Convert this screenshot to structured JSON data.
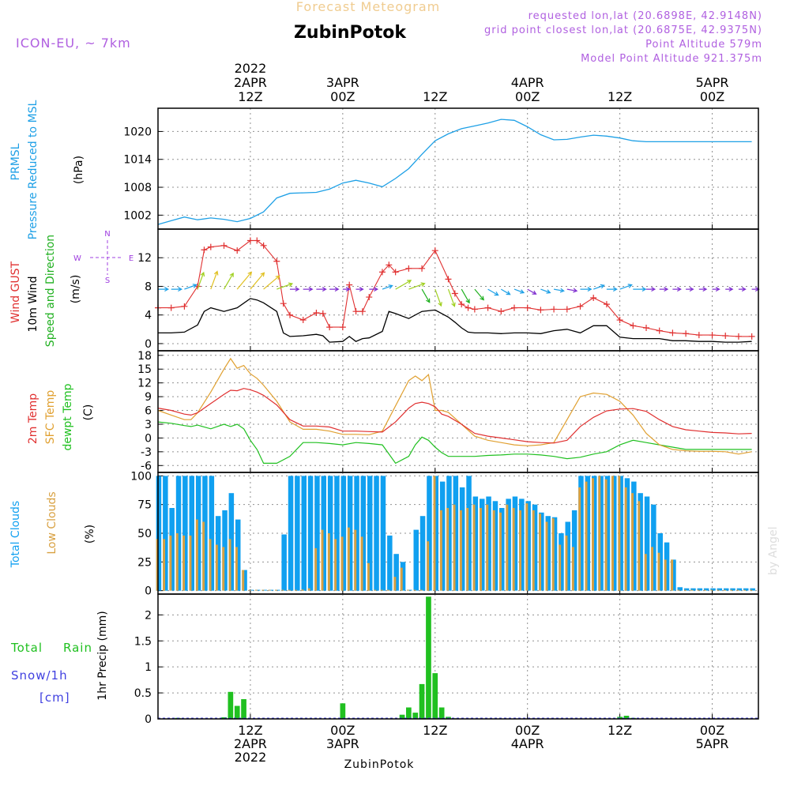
{
  "header": {
    "title": "ZubinPotok",
    "subtitle": "Forecast Meteogram",
    "model": "ICON-EU, ~ 7km",
    "requested": "requested lon,lat (20.6898E, 42.9148N)",
    "closest": "grid point closest lon,lat (20.6875E, 42.9375N)",
    "point_alt": "Point Altitude 579m",
    "model_alt": "Model Point Altitude 921.375m",
    "footer_name": "ZubinPotok",
    "watermark": "by Angel"
  },
  "time_axis": {
    "start_hour": 0,
    "end_hour": 91,
    "top_ticks": [
      {
        "hour": 14,
        "lines": [
          "2022",
          "2APR",
          "12Z"
        ]
      },
      {
        "hour": 28,
        "lines": [
          "3APR",
          "00Z"
        ]
      },
      {
        "hour": 42,
        "lines": [
          "12Z"
        ]
      },
      {
        "hour": 56,
        "lines": [
          "4APR",
          "00Z"
        ]
      },
      {
        "hour": 70,
        "lines": [
          "12Z"
        ]
      },
      {
        "hour": 84,
        "lines": [
          "5APR",
          "00Z"
        ]
      }
    ],
    "bottom_ticks": [
      {
        "hour": 14,
        "lines": [
          "12Z",
          "2APR",
          "2022"
        ]
      },
      {
        "hour": 28,
        "lines": [
          "00Z",
          "3APR"
        ]
      },
      {
        "hour": 42,
        "lines": [
          "12Z"
        ]
      },
      {
        "hour": 56,
        "lines": [
          "00Z",
          "4APR"
        ]
      },
      {
        "hour": 70,
        "lines": [
          "12Z"
        ]
      },
      {
        "hour": 84,
        "lines": [
          "00Z",
          "5APR"
        ]
      }
    ]
  },
  "colors": {
    "pressure": "#1ea0e6",
    "gust": "#e03030",
    "wind": "#000000",
    "wind_dir": "#20b020",
    "temp2m": "#e03030",
    "sfc": "#e0a030",
    "dewpt": "#20c020",
    "total_clouds": "#10a0f0",
    "low_clouds": "#d8a040",
    "rain": "#20c020",
    "snow": "#4040e0",
    "compass": "#a040e0",
    "grid": "#909090"
  },
  "chart_data": [
    {
      "type": "line",
      "id": "pressure",
      "labels": [
        "PRMSL",
        "Pressure Reduced to MSL",
        "(hPa)"
      ],
      "yticks": [
        1002,
        1008,
        1014,
        1020
      ],
      "ylim": [
        999,
        1025
      ],
      "x": [
        0,
        2,
        4,
        6,
        8,
        10,
        12,
        14,
        16,
        18,
        20,
        22,
        24,
        26,
        28,
        30,
        32,
        34,
        36,
        38,
        40,
        42,
        44,
        46,
        48,
        50,
        52,
        54,
        56,
        58,
        60,
        62,
        64,
        66,
        68,
        70,
        72,
        74,
        76,
        78,
        80,
        82,
        84,
        86,
        88,
        90
      ],
      "values": [
        1000.0,
        1000.8,
        1001.6,
        1001.0,
        1001.4,
        1001.1,
        1000.6,
        1001.3,
        1002.7,
        1005.7,
        1006.7,
        1006.8,
        1006.9,
        1007.6,
        1008.9,
        1009.5,
        1008.9,
        1008.1,
        1009.9,
        1012.0,
        1015.1,
        1018.0,
        1019.5,
        1020.6,
        1021.2,
        1021.8,
        1022.6,
        1022.4,
        1021.0,
        1019.3,
        1018.2,
        1018.3,
        1018.8,
        1019.2,
        1019.0,
        1018.6,
        1018.0,
        1017.8,
        1017.8,
        1017.8,
        1017.8,
        1017.8,
        1017.8,
        1017.8,
        1017.8,
        1017.8
      ]
    },
    {
      "type": "line",
      "id": "wind",
      "labels": [
        "Wind GUST",
        "10m Wind",
        "Speed and Direction",
        "(m/s)"
      ],
      "compass": [
        "N",
        "W",
        "E",
        "S"
      ],
      "yticks": [
        0,
        4,
        8,
        12
      ],
      "ylim": [
        -1,
        16
      ],
      "x": [
        0,
        2,
        4,
        6,
        7,
        8,
        10,
        12,
        14,
        15,
        16,
        18,
        19,
        20,
        22,
        24,
        25,
        26,
        28,
        29,
        30,
        31,
        32,
        34,
        35,
        36,
        38,
        40,
        42,
        44,
        45,
        46,
        47,
        48,
        50,
        52,
        54,
        56,
        58,
        60,
        62,
        64,
        66,
        68,
        70,
        72,
        74,
        76,
        78,
        80,
        82,
        84,
        86,
        88,
        90
      ],
      "series": [
        {
          "name": "Wind GUST",
          "values": [
            5.0,
            5.0,
            5.2,
            8.0,
            13.1,
            13.5,
            13.7,
            13.0,
            14.4,
            14.4,
            13.7,
            11.5,
            5.6,
            4.0,
            3.3,
            4.3,
            4.2,
            2.3,
            2.3,
            8.2,
            4.5,
            4.5,
            6.5,
            10.0,
            11.0,
            10.0,
            10.5,
            10.5,
            13.0,
            9.0,
            7.0,
            5.5,
            5.0,
            4.8,
            5.0,
            4.5,
            5.0,
            5.0,
            4.7,
            4.8,
            4.8,
            5.2,
            6.4,
            5.5,
            3.3,
            2.5,
            2.2,
            1.8,
            1.5,
            1.4,
            1.2,
            1.2,
            1.1,
            1.0,
            1.0
          ]
        },
        {
          "name": "10m Wind",
          "values": [
            1.5,
            1.5,
            1.6,
            2.6,
            4.5,
            5.0,
            4.5,
            5.0,
            6.3,
            6.1,
            5.7,
            4.5,
            1.5,
            1.0,
            1.1,
            1.3,
            1.1,
            0.2,
            0.3,
            1.0,
            0.3,
            0.7,
            0.8,
            1.7,
            4.5,
            4.2,
            3.5,
            4.5,
            4.7,
            3.7,
            3.0,
            2.2,
            1.6,
            1.5,
            1.5,
            1.4,
            1.5,
            1.5,
            1.4,
            1.8,
            2.0,
            1.5,
            2.5,
            2.5,
            0.9,
            0.7,
            0.7,
            0.7,
            0.4,
            0.4,
            0.3,
            0.3,
            0.2,
            0.2,
            0.3
          ]
        }
      ],
      "arrows": {
        "x": [
          0,
          2,
          4,
          6,
          8,
          10,
          12,
          14,
          16,
          18,
          20,
          22,
          24,
          26,
          28,
          30,
          32,
          34,
          36,
          38,
          40,
          42,
          44,
          46,
          48,
          50,
          52,
          54,
          56,
          58,
          60,
          62,
          64,
          66,
          68,
          70,
          72,
          74,
          76,
          78,
          80,
          82,
          84,
          86,
          88,
          90
        ],
        "speed": [
          1.5,
          1.6,
          2.6,
          4.5,
          5.0,
          4.8,
          6.3,
          6.0,
          5.7,
          4.0,
          1.0,
          1.1,
          1.3,
          1.0,
          0.2,
          0.3,
          0.8,
          1.7,
          4.5,
          4.2,
          3.5,
          4.5,
          4.7,
          3.7,
          3.0,
          2.2,
          1.6,
          1.5,
          1.4,
          1.5,
          1.5,
          1.4,
          1.8,
          2.0,
          1.5,
          2.5,
          2.5,
          0.9,
          0.7,
          0.7,
          0.4,
          0.4,
          0.3,
          0.3,
          0.2,
          0.3
        ],
        "direction_deg": [
          270,
          270,
          250,
          200,
          200,
          210,
          220,
          220,
          230,
          250,
          270,
          270,
          270,
          270,
          270,
          270,
          270,
          250,
          240,
          250,
          330,
          340,
          340,
          330,
          320,
          300,
          300,
          290,
          300,
          290,
          280,
          280,
          270,
          250,
          270,
          250,
          270,
          270,
          270,
          270,
          270,
          270,
          270,
          270,
          270,
          270
        ]
      }
    },
    {
      "type": "line",
      "id": "temperature",
      "labels": [
        "2m Temp",
        "SFC Temp",
        "dewpt Temp",
        "(C)"
      ],
      "yticks": [
        -6,
        -3,
        0,
        3,
        6,
        9,
        12,
        15,
        18
      ],
      "ylim": [
        -7.5,
        19
      ],
      "x": [
        0,
        2,
        4,
        5,
        6,
        8,
        10,
        11,
        12,
        13,
        14,
        15,
        16,
        18,
        20,
        22,
        24,
        26,
        28,
        30,
        32,
        34,
        36,
        38,
        39,
        40,
        41,
        42,
        43,
        44,
        46,
        48,
        50,
        52,
        54,
        56,
        58,
        60,
        62,
        64,
        66,
        68,
        70,
        72,
        74,
        76,
        78,
        80,
        82,
        84,
        86,
        88,
        90
      ],
      "series": [
        {
          "name": "2m Temp",
          "values": [
            6.5,
            6.0,
            5.2,
            5.0,
            5.5,
            7.5,
            9.5,
            10.4,
            10.3,
            10.8,
            10.5,
            10.0,
            9.3,
            7.2,
            4.0,
            2.6,
            2.6,
            2.4,
            1.5,
            1.5,
            1.4,
            1.3,
            3.5,
            6.5,
            7.5,
            7.8,
            7.5,
            6.8,
            5.2,
            4.7,
            3.0,
            1.0,
            0.4,
            0.0,
            -0.4,
            -0.8,
            -1.0,
            -1.1,
            -0.5,
            2.5,
            4.5,
            5.9,
            6.3,
            6.4,
            5.8,
            4.0,
            2.5,
            1.8,
            1.5,
            1.2,
            1.1,
            0.9,
            1.0
          ]
        },
        {
          "name": "SFC Temp",
          "values": [
            6.0,
            5.0,
            4.0,
            4.0,
            5.5,
            10.0,
            15.0,
            17.3,
            15.2,
            15.8,
            14.0,
            13.0,
            11.5,
            8.0,
            3.5,
            1.9,
            1.9,
            1.5,
            0.8,
            0.8,
            0.7,
            1.5,
            7.0,
            12.5,
            13.5,
            12.5,
            13.8,
            6.0,
            6.0,
            5.6,
            3.0,
            0.4,
            -0.5,
            -1.0,
            -1.5,
            -1.7,
            -1.5,
            -1.0,
            4.0,
            9.0,
            9.8,
            9.5,
            8.0,
            5.0,
            1.0,
            -1.5,
            -2.5,
            -2.8,
            -2.9,
            -2.9,
            -3.0,
            -3.5,
            -3.0
          ]
        },
        {
          "name": "dewpt Temp",
          "values": [
            3.5,
            3.2,
            2.7,
            2.5,
            2.8,
            2.0,
            3.0,
            2.5,
            3.0,
            2.0,
            -0.5,
            -2.5,
            -5.5,
            -5.5,
            -4.0,
            -1.0,
            -1.0,
            -1.2,
            -1.5,
            -1.0,
            -1.2,
            -1.5,
            -5.5,
            -4.0,
            -1.5,
            0.2,
            -0.5,
            -2.0,
            -3.2,
            -4.0,
            -4.0,
            -4.0,
            -3.8,
            -3.7,
            -3.5,
            -3.5,
            -3.7,
            -4.0,
            -4.5,
            -4.2,
            -3.5,
            -3.0,
            -1.5,
            -0.5,
            -1.0,
            -1.5,
            -2.0,
            -2.5,
            -2.5,
            -2.5,
            -2.5,
            -2.5,
            -2.5
          ]
        }
      ]
    },
    {
      "type": "bar",
      "id": "clouds",
      "labels": [
        "Total Clouds",
        "Low Clouds",
        "(%)"
      ],
      "yticks": [
        0,
        25,
        50,
        75,
        100
      ],
      "ylim": [
        -3,
        103
      ],
      "x": [
        0,
        1,
        2,
        3,
        4,
        5,
        6,
        7,
        8,
        9,
        10,
        11,
        12,
        13,
        14,
        15,
        16,
        17,
        18,
        19,
        20,
        21,
        22,
        23,
        24,
        25,
        26,
        27,
        28,
        29,
        30,
        31,
        32,
        33,
        34,
        35,
        36,
        37,
        38,
        39,
        40,
        41,
        42,
        43,
        44,
        45,
        46,
        47,
        48,
        49,
        50,
        51,
        52,
        53,
        54,
        55,
        56,
        57,
        58,
        59,
        60,
        61,
        62,
        63,
        64,
        65,
        66,
        67,
        68,
        69,
        70,
        71,
        72,
        73,
        74,
        75,
        76,
        77,
        78,
        79,
        80,
        81,
        82,
        83,
        84,
        85,
        86,
        87,
        88,
        89,
        90
      ],
      "series": [
        {
          "name": "Total Clouds",
          "values": [
            100,
            100,
            72,
            100,
            100,
            100,
            100,
            100,
            100,
            65,
            70,
            85,
            62,
            18,
            0,
            0,
            0,
            0,
            0,
            49,
            100,
            100,
            100,
            100,
            100,
            100,
            100,
            100,
            100,
            100,
            100,
            100,
            100,
            100,
            100,
            48,
            32,
            25,
            0,
            53,
            65,
            100,
            100,
            95,
            100,
            100,
            90,
            100,
            82,
            80,
            82,
            78,
            72,
            80,
            82,
            80,
            78,
            75,
            68,
            65,
            64,
            50,
            60,
            70,
            100,
            100,
            100,
            100,
            100,
            100,
            100,
            98,
            95,
            85,
            82,
            75,
            50,
            42,
            27,
            3,
            2,
            2,
            2,
            2,
            2,
            2,
            2,
            2,
            2,
            2,
            2
          ]
        },
        {
          "name": "Low Clouds",
          "values": [
            45,
            45,
            48,
            50,
            48,
            48,
            62,
            60,
            45,
            40,
            38,
            45,
            38,
            18,
            0,
            0,
            0,
            0,
            0,
            0,
            0,
            0,
            1,
            2,
            37,
            53,
            50,
            45,
            47,
            55,
            53,
            47,
            24,
            0,
            0,
            0,
            12,
            20,
            0,
            0,
            0,
            43,
            100,
            70,
            72,
            75,
            70,
            72,
            75,
            72,
            75,
            70,
            68,
            75,
            72,
            70,
            76,
            70,
            67,
            60,
            63,
            40,
            48,
            38,
            90,
            95,
            98,
            100,
            97,
            100,
            100,
            90,
            85,
            78,
            32,
            38,
            33,
            27,
            27,
            0,
            0,
            0,
            0,
            0,
            0,
            0,
            0,
            0,
            0,
            0,
            0
          ]
        }
      ]
    },
    {
      "type": "bar",
      "id": "precip",
      "labels": [
        "Total",
        "Rain",
        "Snow/1h",
        "[cm]",
        "1hr Precip (mm)"
      ],
      "yticks": [
        0,
        0.5,
        1,
        1.5,
        2
      ],
      "ylim": [
        0,
        2.4
      ],
      "x": [
        3,
        10,
        11,
        12,
        13,
        28,
        37,
        38,
        39,
        40,
        41,
        42,
        43,
        44,
        45,
        70,
        71,
        72
      ],
      "values": [
        0.02,
        0.03,
        0.52,
        0.25,
        0.38,
        0.3,
        0.08,
        0.22,
        0.12,
        0.67,
        2.35,
        0.88,
        0.22,
        0.04,
        0.01,
        0.04,
        0.06,
        0.02
      ]
    }
  ]
}
